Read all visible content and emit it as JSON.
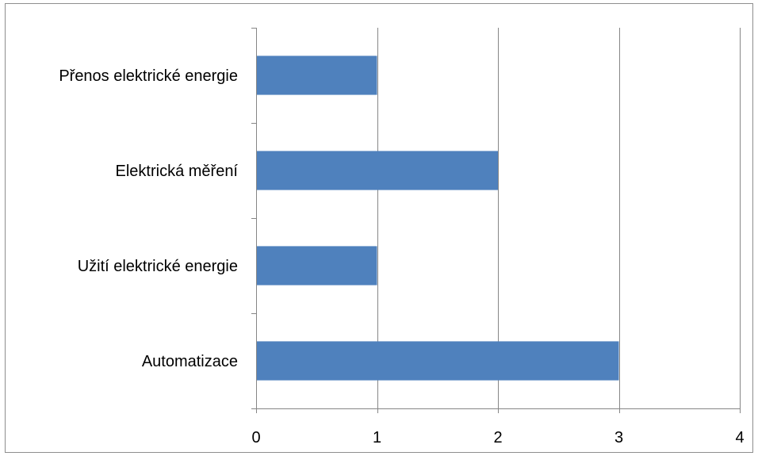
{
  "chart_data": {
    "type": "bar",
    "orientation": "horizontal",
    "categories": [
      "Přenos elektrické energie",
      "Elektrická měření",
      "Užití elektrické energie",
      "Automatizace"
    ],
    "values": [
      1,
      2,
      1,
      3
    ],
    "xlim": [
      0,
      4
    ],
    "xticks": [
      "0",
      "1",
      "2",
      "3",
      "4"
    ],
    "grid": "vertical",
    "legend": "none",
    "colors": {
      "bar": "#4f81bd",
      "grid": "#868686",
      "axis": "#868686",
      "frame": "#8e8e8e"
    }
  }
}
